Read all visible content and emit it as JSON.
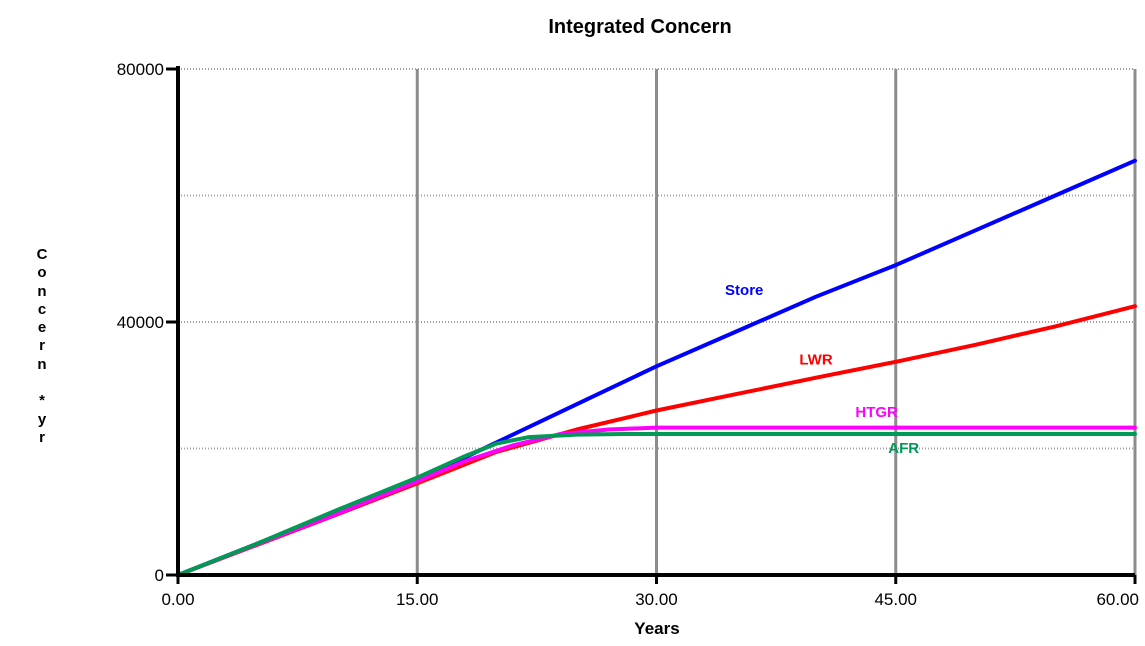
{
  "chart_data": {
    "type": "line",
    "title": "Integrated Concern",
    "xlabel": "Years",
    "ylabel": "Concern * yr",
    "ylabel_glyphs": [
      "C",
      "o",
      "n",
      "c",
      "e",
      "r",
      "n",
      "",
      "*",
      "y",
      "r"
    ],
    "xlim": [
      0,
      60
    ],
    "ylim": [
      0,
      80000
    ],
    "x_ticks": [
      "0.00",
      "15.00",
      "30.00",
      "45.00",
      "60.00"
    ],
    "y_ticks": [
      "0",
      "40000",
      "80000"
    ],
    "grid": true,
    "series": [
      {
        "name": "Store",
        "color": "#0000ff",
        "x": [
          0,
          5,
          10,
          15,
          17.5,
          20,
          25,
          30,
          35,
          40,
          45,
          50,
          55,
          60
        ],
        "y": [
          0,
          5000,
          10000,
          15000,
          18000,
          21000,
          27000,
          33000,
          38500,
          44000,
          49000,
          54500,
          60000,
          65500
        ]
      },
      {
        "name": "LWR",
        "color": "#ff0000",
        "x": [
          0,
          5,
          10,
          15,
          17.5,
          20,
          25,
          30,
          35,
          40,
          45,
          50,
          55,
          60
        ],
        "y": [
          0,
          4800,
          9600,
          14500,
          17000,
          19500,
          23000,
          26000,
          28600,
          31200,
          33700,
          36400,
          39300,
          42500
        ]
      },
      {
        "name": "HTGR",
        "color": "#ff00ff",
        "x": [
          0,
          5,
          10,
          15,
          18,
          21,
          24,
          27,
          30,
          45,
          60
        ],
        "y": [
          0,
          4900,
          9700,
          14800,
          18000,
          20500,
          22300,
          23000,
          23300,
          23300,
          23300
        ]
      },
      {
        "name": "AFR",
        "color": "#009955",
        "x": [
          0,
          5,
          10,
          15,
          18,
          20,
          22,
          25,
          28,
          30,
          45,
          60
        ],
        "y": [
          0,
          5000,
          10300,
          15400,
          18800,
          20800,
          21800,
          22200,
          22300,
          22300,
          22300,
          22300
        ]
      }
    ],
    "series_labels": [
      {
        "name": "Store",
        "x": 35.5,
        "y": 44300
      },
      {
        "name": "LWR",
        "x": 40,
        "y": 33300
      },
      {
        "name": "HTGR",
        "x": 43.8,
        "y": 25000
      },
      {
        "name": "AFR",
        "x": 45.5,
        "y": 19300
      }
    ]
  }
}
